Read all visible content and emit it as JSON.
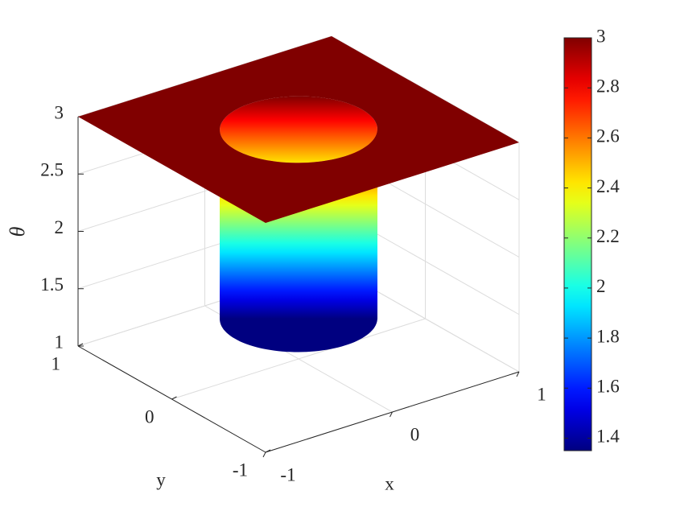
{
  "chart_data": {
    "type": "surface",
    "xlabel": "x",
    "ylabel": "y",
    "zlabel": "θ",
    "xlim": [
      -1,
      1
    ],
    "xticks": [
      -1,
      0,
      1
    ],
    "ylim": [
      -1,
      1
    ],
    "yticks": [
      -1,
      0,
      1
    ],
    "zlim": [
      1,
      3
    ],
    "zticks": [
      1,
      1.5,
      2,
      2.5,
      3
    ],
    "grid": true,
    "surface": {
      "radius": 0.5,
      "z_outside": 3,
      "z_inside_min": 1.35,
      "plane_color": "#800000"
    },
    "colormap": "jet",
    "colorbar": {
      "lim": [
        1.35,
        3
      ],
      "ticks": [
        1.4,
        1.6,
        1.8,
        2,
        2.2,
        2.4,
        2.6,
        2.8,
        3
      ]
    }
  }
}
